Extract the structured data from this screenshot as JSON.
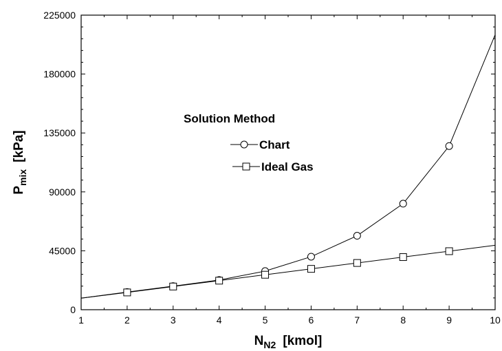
{
  "chart_data": {
    "type": "line",
    "xlabel": {
      "main": "N",
      "sub": "N2",
      "unit": "[kmol]"
    },
    "ylabel": {
      "main": "P",
      "sub": "mix",
      "unit": "[kPa]"
    },
    "xlim": [
      1,
      10
    ],
    "ylim": [
      0,
      225000
    ],
    "x_ticks": [
      1,
      2,
      3,
      4,
      5,
      6,
      7,
      8,
      9,
      10
    ],
    "y_ticks": [
      0,
      45000,
      90000,
      135000,
      180000,
      225000
    ],
    "y_minor_step": 9000,
    "grid": false,
    "legend": {
      "title": "Solution Method",
      "placement": "upper-left"
    },
    "series": [
      {
        "name": "Chart",
        "marker": "circle",
        "x": [
          1,
          2,
          3,
          4,
          5,
          6,
          7,
          8,
          9,
          10
        ],
        "values": [
          8800,
          13500,
          18000,
          22700,
          29500,
          40500,
          56500,
          81000,
          125000,
          210000
        ]
      },
      {
        "name": "Ideal Gas",
        "marker": "square",
        "x": [
          1,
          2,
          3,
          4,
          5,
          6,
          7,
          8,
          9,
          10
        ],
        "values": [
          8800,
          13200,
          17700,
          22200,
          26700,
          31200,
          35700,
          40200,
          44700,
          49200
        ]
      }
    ]
  }
}
